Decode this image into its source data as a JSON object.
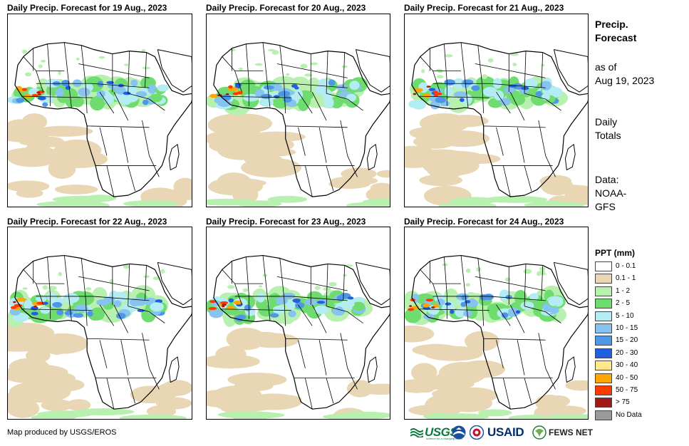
{
  "panels": [
    {
      "title": "Daily Precip. Forecast for 19 Aug., 2023"
    },
    {
      "title": "Daily Precip. Forecast for 20 Aug., 2023"
    },
    {
      "title": "Daily Precip. Forecast for 21 Aug., 2023"
    },
    {
      "title": "Daily Precip. Forecast for 22 Aug., 2023"
    },
    {
      "title": "Daily Precip. Forecast for 23 Aug., 2023"
    },
    {
      "title": "Daily Precip. Forecast for 24 Aug., 2023"
    }
  ],
  "sidebar": {
    "title_line1": "Precip.",
    "title_line2": "Forecast",
    "asof_line1": "as of",
    "asof_line2": "Aug 19, 2023",
    "totals_line1": "Daily",
    "totals_line2": "Totals",
    "data_line1": "Data:",
    "data_line2": "NOAA-",
    "data_line3": "GFS"
  },
  "legend": {
    "title": "PPT (mm)",
    "items": [
      {
        "label": "0 - 0.1",
        "color": "#ffffff"
      },
      {
        "label": "0.1 - 1",
        "color": "#e8d6b4"
      },
      {
        "label": "1 - 2",
        "color": "#b8f0b0"
      },
      {
        "label": "2 - 5",
        "color": "#6fdc6f"
      },
      {
        "label": "5 - 10",
        "color": "#b4ecf4"
      },
      {
        "label": "10 - 15",
        "color": "#86c3ee"
      },
      {
        "label": "15 - 20",
        "color": "#4e97e6"
      },
      {
        "label": "20 - 30",
        "color": "#1f5fe0"
      },
      {
        "label": "30 - 40",
        "color": "#ffe88a"
      },
      {
        "label": "40 - 50",
        "color": "#ffa600"
      },
      {
        "label": "50 - 75",
        "color": "#ff3a00"
      },
      {
        "label": "> 75",
        "color": "#a01818"
      },
      {
        "label": "No Data",
        "color": "#9a9a9a"
      }
    ]
  },
  "footer": {
    "credit": "Map produced by USGS/EROS",
    "logos": {
      "usgs": "USGS",
      "usgs_tagline": "science for a changing world",
      "noaa": "NOAA",
      "usaid": "USAID",
      "fews": "FEWS NET"
    }
  }
}
